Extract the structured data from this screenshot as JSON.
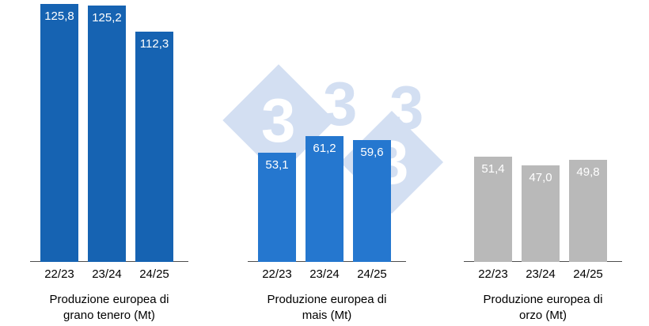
{
  "chart_data": {
    "type": "bar",
    "ylim": [
      0,
      128
    ],
    "grid": false,
    "legend": false,
    "value_label_color": "#ffffff",
    "axis_line_color": "#4d4d4d",
    "groups": [
      {
        "title": "Produzione europea di grano tenero (Mt)",
        "categories": [
          "22/23",
          "23/24",
          "24/25"
        ],
        "values": [
          125.8,
          125.2,
          112.3
        ],
        "value_labels": [
          "125,8",
          "125,2",
          "112,3"
        ],
        "bar_color": "#1663b2"
      },
      {
        "title": "Produzione europea di mais (Mt)",
        "categories": [
          "22/23",
          "23/24",
          "24/25"
        ],
        "values": [
          53.1,
          61.2,
          59.6
        ],
        "value_labels": [
          "53,1",
          "61,2",
          "59,6"
        ],
        "bar_color": "#2577cf"
      },
      {
        "title": "Produzione europea di orzo (Mt)",
        "categories": [
          "22/23",
          "23/24",
          "24/25"
        ],
        "values": [
          51.4,
          47.0,
          49.8
        ],
        "value_labels": [
          "51,4",
          "47,0",
          "49,8"
        ],
        "bar_color": "#b9b9b9"
      }
    ]
  },
  "watermark": {
    "glyph": "3",
    "diamond_color": "#d3dff2"
  }
}
